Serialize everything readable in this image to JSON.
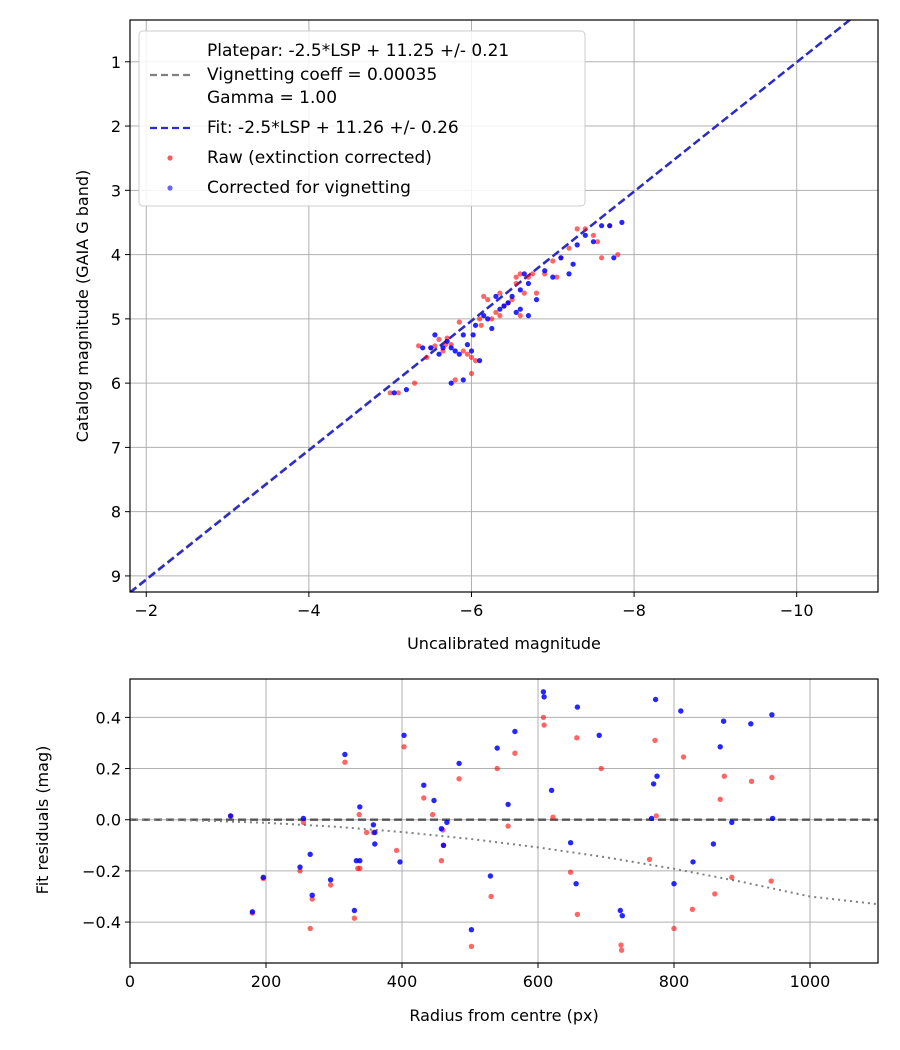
{
  "chart_data": [
    {
      "type": "scatter",
      "xlabel": "Uncalibrated magnitude",
      "ylabel": "Catalog magnitude (GAIA G band)",
      "xlim": [
        -1.8,
        -11.0
      ],
      "ylim": [
        9.25,
        0.35
      ],
      "xticks": [
        -2,
        -4,
        -6,
        -8,
        -10
      ],
      "xtick_labels": [
        "−2",
        "−4",
        "−6",
        "−8",
        "−10"
      ],
      "yticks": [
        1,
        2,
        3,
        4,
        5,
        6,
        7,
        8,
        9
      ],
      "ytick_labels": [
        "1",
        "2",
        "3",
        "4",
        "5",
        "6",
        "7",
        "8",
        "9"
      ],
      "grid": true,
      "legend_position": "top-left",
      "legend": [
        {
          "label": "Platepar: -2.5*LSP + 11.25 +/- 0.21",
          "style": "none"
        },
        {
          "label": "Vignetting coeff = 0.00035",
          "style": "dashed-gray"
        },
        {
          "label": "Gamma = 1.00",
          "style": "none"
        },
        {
          "label": "Fit: -2.5*LSP + 11.26 +/- 0.26",
          "style": "dashed-blue"
        },
        {
          "label": "Raw (extinction corrected)",
          "style": "red-dot"
        },
        {
          "label": "Corrected for vignetting",
          "style": "blue-dot"
        }
      ],
      "lines": [
        {
          "name": "Platepar",
          "color": "#808080",
          "x": [
            -1.8,
            -11.0
          ],
          "y": [
            9.25,
            0.0
          ]
        },
        {
          "name": "Fit",
          "color": "#2a2ad0",
          "x": [
            -1.8,
            -11.0
          ],
          "y": [
            9.26,
            0.0
          ]
        }
      ],
      "series": [
        {
          "name": "Raw (extinction corrected)",
          "color": "#ff0000",
          "x": [
            -5.0,
            -5.1,
            -5.35,
            -5.5,
            -5.55,
            -5.6,
            -5.65,
            -5.7,
            -5.75,
            -5.8,
            -5.85,
            -5.9,
            -5.95,
            -6.0,
            -6.05,
            -6.1,
            -6.15,
            -6.2,
            -6.25,
            -6.3,
            -6.35,
            -6.4,
            -6.45,
            -6.5,
            -6.55,
            -6.6,
            -6.65,
            -6.7,
            -6.75,
            -6.8,
            -6.9,
            -7.0,
            -7.1,
            -7.2,
            -7.3,
            -7.4,
            -7.5,
            -7.6,
            -7.7,
            -7.8,
            -5.3,
            -5.45,
            -6.12,
            -6.6,
            -7.05,
            -5.68,
            -6.0,
            -6.35,
            -6.55,
            -7.55
          ],
          "y": [
            6.15,
            6.15,
            5.42,
            5.45,
            5.42,
            5.32,
            5.5,
            5.3,
            5.4,
            5.95,
            5.05,
            5.5,
            5.55,
            5.6,
            5.65,
            5.0,
            4.65,
            4.7,
            5.0,
            4.9,
            4.95,
            4.8,
            4.75,
            4.7,
            4.35,
            4.3,
            4.6,
            4.35,
            4.3,
            4.6,
            4.3,
            4.1,
            4.05,
            3.9,
            3.6,
            3.6,
            3.7,
            4.05,
            3.55,
            4.0,
            6.0,
            5.6,
            5.1,
            4.95,
            4.35,
            5.4,
            5.85,
            4.6,
            4.45,
            3.8
          ]
        },
        {
          "name": "Corrected for vignetting",
          "color": "#0000ff",
          "x": [
            -5.05,
            -5.2,
            -5.4,
            -5.5,
            -5.6,
            -5.65,
            -5.7,
            -5.75,
            -5.8,
            -5.85,
            -5.9,
            -5.95,
            -6.0,
            -6.05,
            -6.1,
            -6.15,
            -6.2,
            -6.25,
            -6.3,
            -6.35,
            -6.4,
            -6.5,
            -6.55,
            -6.6,
            -6.65,
            -6.7,
            -6.8,
            -6.9,
            -7.0,
            -7.1,
            -7.2,
            -7.3,
            -7.4,
            -7.5,
            -7.6,
            -7.7,
            -7.85,
            -5.55,
            -5.75,
            -6.45,
            -6.6,
            -7.25,
            -7.75,
            -5.9,
            -6.02,
            -6.7
          ],
          "y": [
            6.15,
            6.1,
            5.45,
            5.45,
            5.55,
            5.45,
            5.35,
            5.45,
            5.5,
            5.55,
            5.25,
            5.4,
            5.5,
            5.1,
            5.65,
            4.95,
            5.0,
            5.15,
            4.65,
            4.85,
            4.8,
            4.65,
            4.9,
            4.55,
            4.3,
            4.45,
            4.7,
            4.25,
            4.35,
            4.05,
            4.3,
            3.85,
            3.7,
            3.8,
            3.55,
            3.55,
            3.5,
            5.25,
            6.0,
            4.75,
            4.85,
            4.15,
            4.05,
            5.95,
            5.25,
            4.95
          ]
        }
      ]
    },
    {
      "type": "scatter",
      "xlabel": "Radius from centre (px)",
      "ylabel": "Fit residuals (mag)",
      "xlim": [
        0,
        1100
      ],
      "ylim": [
        -0.56,
        0.55
      ],
      "xticks": [
        0,
        200,
        400,
        600,
        800,
        1000
      ],
      "xtick_labels": [
        "0",
        "200",
        "400",
        "600",
        "800",
        "1000"
      ],
      "yticks": [
        -0.4,
        -0.2,
        0.0,
        0.2,
        0.4
      ],
      "ytick_labels": [
        "−0.4",
        "−0.2",
        "0.0",
        "0.2",
        "0.4"
      ],
      "grid": true,
      "lines": [
        {
          "name": "zero",
          "color": "#555555",
          "style": "dashed",
          "x": [
            0,
            1100
          ],
          "y": [
            0,
            0
          ]
        },
        {
          "name": "vignetting",
          "color": "#808080",
          "style": "dotted",
          "x": [
            0,
            100,
            200,
            300,
            400,
            500,
            600,
            700,
            800,
            900,
            1000,
            1100
          ],
          "y": [
            0.0,
            -0.003,
            -0.012,
            -0.027,
            -0.048,
            -0.075,
            -0.108,
            -0.147,
            -0.192,
            -0.243,
            -0.3,
            -0.33
          ]
        }
      ],
      "series": [
        {
          "name": "Raw (extinction corrected)",
          "color": "#ff0000",
          "x": [
            148,
            180,
            196,
            250,
            265,
            268,
            295,
            316,
            330,
            335,
            337,
            348,
            358,
            403,
            432,
            445,
            458,
            461,
            484,
            502,
            531,
            540,
            556,
            566,
            608,
            609,
            622,
            648,
            657,
            658,
            693,
            722,
            723,
            764,
            772,
            774,
            800,
            814,
            827,
            860,
            868,
            874,
            885,
            914,
            943,
            944,
            255,
            338,
            392,
            460
          ],
          "y": [
            0.015,
            -0.365,
            -0.23,
            -0.2,
            -0.425,
            -0.31,
            -0.255,
            0.225,
            -0.385,
            -0.19,
            0.02,
            -0.05,
            -0.05,
            0.285,
            0.085,
            0.02,
            -0.16,
            -0.1,
            0.16,
            -0.495,
            -0.3,
            0.2,
            -0.025,
            0.26,
            0.4,
            0.37,
            0.01,
            -0.205,
            0.32,
            -0.37,
            0.2,
            -0.49,
            -0.51,
            -0.155,
            0.31,
            0.015,
            -0.425,
            0.245,
            -0.35,
            -0.29,
            0.08,
            0.17,
            -0.225,
            0.15,
            -0.24,
            0.165,
            -0.01,
            -0.19,
            -0.12,
            -0.04
          ]
        },
        {
          "name": "Corrected for vignetting",
          "color": "#0000ff",
          "x": [
            148,
            180,
            196,
            250,
            255,
            265,
            268,
            295,
            316,
            330,
            333,
            338,
            358,
            360,
            397,
            403,
            432,
            447,
            458,
            461,
            466,
            484,
            502,
            530,
            540,
            556,
            566,
            608,
            609,
            620,
            648,
            656,
            658,
            690,
            721,
            724,
            767,
            770,
            773,
            775,
            800,
            810,
            828,
            858,
            868,
            873,
            885,
            913,
            944,
            945,
            338,
            360
          ],
          "y": [
            0.015,
            -0.36,
            -0.225,
            -0.185,
            0.005,
            -0.135,
            -0.295,
            -0.235,
            0.255,
            -0.355,
            -0.16,
            0.05,
            -0.02,
            -0.095,
            -0.165,
            0.33,
            0.135,
            0.075,
            -0.035,
            -0.1,
            -0.01,
            0.22,
            -0.43,
            -0.22,
            0.28,
            0.06,
            0.345,
            0.5,
            0.48,
            0.115,
            -0.09,
            -0.25,
            0.44,
            0.33,
            -0.355,
            -0.375,
            0.005,
            0.14,
            0.47,
            0.17,
            -0.25,
            0.425,
            -0.165,
            -0.095,
            0.285,
            0.385,
            -0.01,
            0.375,
            0.41,
            0.005,
            -0.16,
            -0.05
          ]
        }
      ]
    }
  ]
}
